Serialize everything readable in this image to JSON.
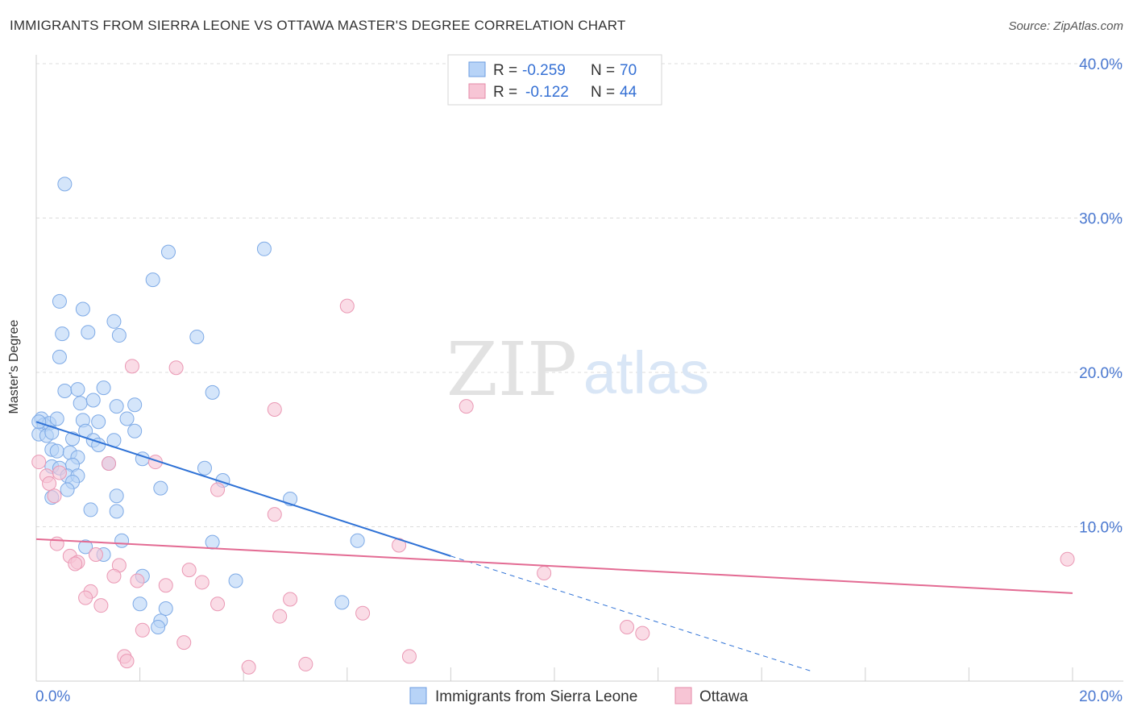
{
  "chart_data": {
    "type": "scatter",
    "title": "IMMIGRANTS FROM SIERRA LEONE VS OTTAWA MASTER'S DEGREE CORRELATION CHART",
    "source": "Source: ZipAtlas.com",
    "watermark": {
      "zip": "ZIP",
      "atlas": "atlas"
    },
    "xlabel": "",
    "ylabel": "Master's Degree",
    "xlim": [
      0,
      20
    ],
    "ylim": [
      0,
      40
    ],
    "x_tick_labels": [
      "0.0%",
      "20.0%"
    ],
    "y_ticks": [
      10,
      20,
      30,
      40
    ],
    "y_tick_labels": [
      "10.0%",
      "20.0%",
      "30.0%",
      "40.0%"
    ],
    "grid": true,
    "legend_position": "top-center",
    "colors": {
      "blue_fill": "#b7d3f7",
      "blue_line": "#2f72d6",
      "pink_fill": "#f7c5d5",
      "pink_line": "#e36b93",
      "tick_text": "#4a78d0"
    },
    "stats": [
      {
        "r_label": "R = ",
        "r_value": "-0.259",
        "n_label": "N = ",
        "n_value": "70"
      },
      {
        "r_label": "R = ",
        "r_value": "-0.122",
        "n_label": "N = ",
        "n_value": "44"
      }
    ],
    "series": [
      {
        "name": "Immigrants from Sierra Leone",
        "trend": {
          "x": [
            0.0,
            8.0
          ],
          "y": [
            16.8,
            8.1
          ],
          "dashed_to": [
            15.0,
            0.6
          ]
        },
        "points": [
          [
            0.55,
            32.2
          ],
          [
            2.55,
            27.8
          ],
          [
            4.4,
            28.0
          ],
          [
            2.25,
            26.0
          ],
          [
            0.45,
            24.6
          ],
          [
            0.9,
            24.1
          ],
          [
            1.5,
            23.3
          ],
          [
            0.5,
            22.5
          ],
          [
            1.0,
            22.6
          ],
          [
            1.6,
            22.4
          ],
          [
            3.1,
            22.3
          ],
          [
            0.45,
            21.0
          ],
          [
            0.55,
            18.8
          ],
          [
            0.8,
            18.9
          ],
          [
            0.85,
            18.0
          ],
          [
            1.1,
            18.2
          ],
          [
            1.3,
            19.0
          ],
          [
            1.55,
            17.8
          ],
          [
            1.9,
            17.9
          ],
          [
            3.4,
            18.7
          ],
          [
            0.1,
            17.0
          ],
          [
            0.15,
            16.6
          ],
          [
            0.25,
            16.7
          ],
          [
            0.4,
            17.0
          ],
          [
            0.9,
            16.9
          ],
          [
            1.2,
            16.8
          ],
          [
            1.75,
            17.0
          ],
          [
            0.05,
            16.0
          ],
          [
            0.2,
            15.9
          ],
          [
            0.3,
            16.1
          ],
          [
            0.7,
            15.7
          ],
          [
            0.95,
            16.2
          ],
          [
            1.1,
            15.6
          ],
          [
            1.2,
            15.3
          ],
          [
            1.5,
            15.6
          ],
          [
            1.9,
            16.2
          ],
          [
            0.3,
            15.0
          ],
          [
            0.4,
            14.9
          ],
          [
            0.65,
            14.8
          ],
          [
            0.8,
            14.5
          ],
          [
            2.05,
            14.4
          ],
          [
            0.3,
            13.9
          ],
          [
            0.45,
            13.8
          ],
          [
            0.7,
            14.0
          ],
          [
            1.4,
            14.1
          ],
          [
            3.25,
            13.8
          ],
          [
            0.6,
            13.3
          ],
          [
            0.8,
            13.3
          ],
          [
            0.7,
            12.9
          ],
          [
            3.6,
            13.0
          ],
          [
            0.6,
            12.4
          ],
          [
            1.55,
            12.0
          ],
          [
            2.4,
            12.5
          ],
          [
            0.3,
            11.9
          ],
          [
            1.05,
            11.1
          ],
          [
            1.55,
            11.0
          ],
          [
            4.9,
            11.8
          ],
          [
            1.65,
            9.1
          ],
          [
            3.4,
            9.0
          ],
          [
            6.2,
            9.1
          ],
          [
            0.95,
            8.7
          ],
          [
            1.3,
            8.2
          ],
          [
            2.05,
            6.8
          ],
          [
            3.85,
            6.5
          ],
          [
            2.0,
            5.0
          ],
          [
            2.5,
            4.7
          ],
          [
            5.9,
            5.1
          ],
          [
            2.4,
            3.9
          ],
          [
            2.35,
            3.5
          ],
          [
            0.05,
            16.8
          ]
        ]
      },
      {
        "name": "Ottawa",
        "trend": {
          "x": [
            0.0,
            20.0
          ],
          "y": [
            9.2,
            5.7
          ]
        },
        "points": [
          [
            6.0,
            24.3
          ],
          [
            1.85,
            20.4
          ],
          [
            2.7,
            20.3
          ],
          [
            4.6,
            17.6
          ],
          [
            8.3,
            17.8
          ],
          [
            0.05,
            14.2
          ],
          [
            1.4,
            14.1
          ],
          [
            2.3,
            14.2
          ],
          [
            0.2,
            13.3
          ],
          [
            0.45,
            13.5
          ],
          [
            0.25,
            12.8
          ],
          [
            0.35,
            12.0
          ],
          [
            3.5,
            12.4
          ],
          [
            4.6,
            10.8
          ],
          [
            0.4,
            8.9
          ],
          [
            0.65,
            8.1
          ],
          [
            0.8,
            7.7
          ],
          [
            1.15,
            8.2
          ],
          [
            0.75,
            7.6
          ],
          [
            7.0,
            8.8
          ],
          [
            19.9,
            7.9
          ],
          [
            1.6,
            7.5
          ],
          [
            2.95,
            7.2
          ],
          [
            1.5,
            6.8
          ],
          [
            9.8,
            7.0
          ],
          [
            1.95,
            6.5
          ],
          [
            2.5,
            6.2
          ],
          [
            3.2,
            6.4
          ],
          [
            1.05,
            5.8
          ],
          [
            0.95,
            5.4
          ],
          [
            4.9,
            5.3
          ],
          [
            3.5,
            5.0
          ],
          [
            1.25,
            4.9
          ],
          [
            6.3,
            4.4
          ],
          [
            4.7,
            4.2
          ],
          [
            2.05,
            3.3
          ],
          [
            11.4,
            3.5
          ],
          [
            11.7,
            3.1
          ],
          [
            2.85,
            2.5
          ],
          [
            1.7,
            1.6
          ],
          [
            1.75,
            1.3
          ],
          [
            7.2,
            1.6
          ],
          [
            5.2,
            1.1
          ],
          [
            4.1,
            0.9
          ]
        ]
      }
    ]
  }
}
